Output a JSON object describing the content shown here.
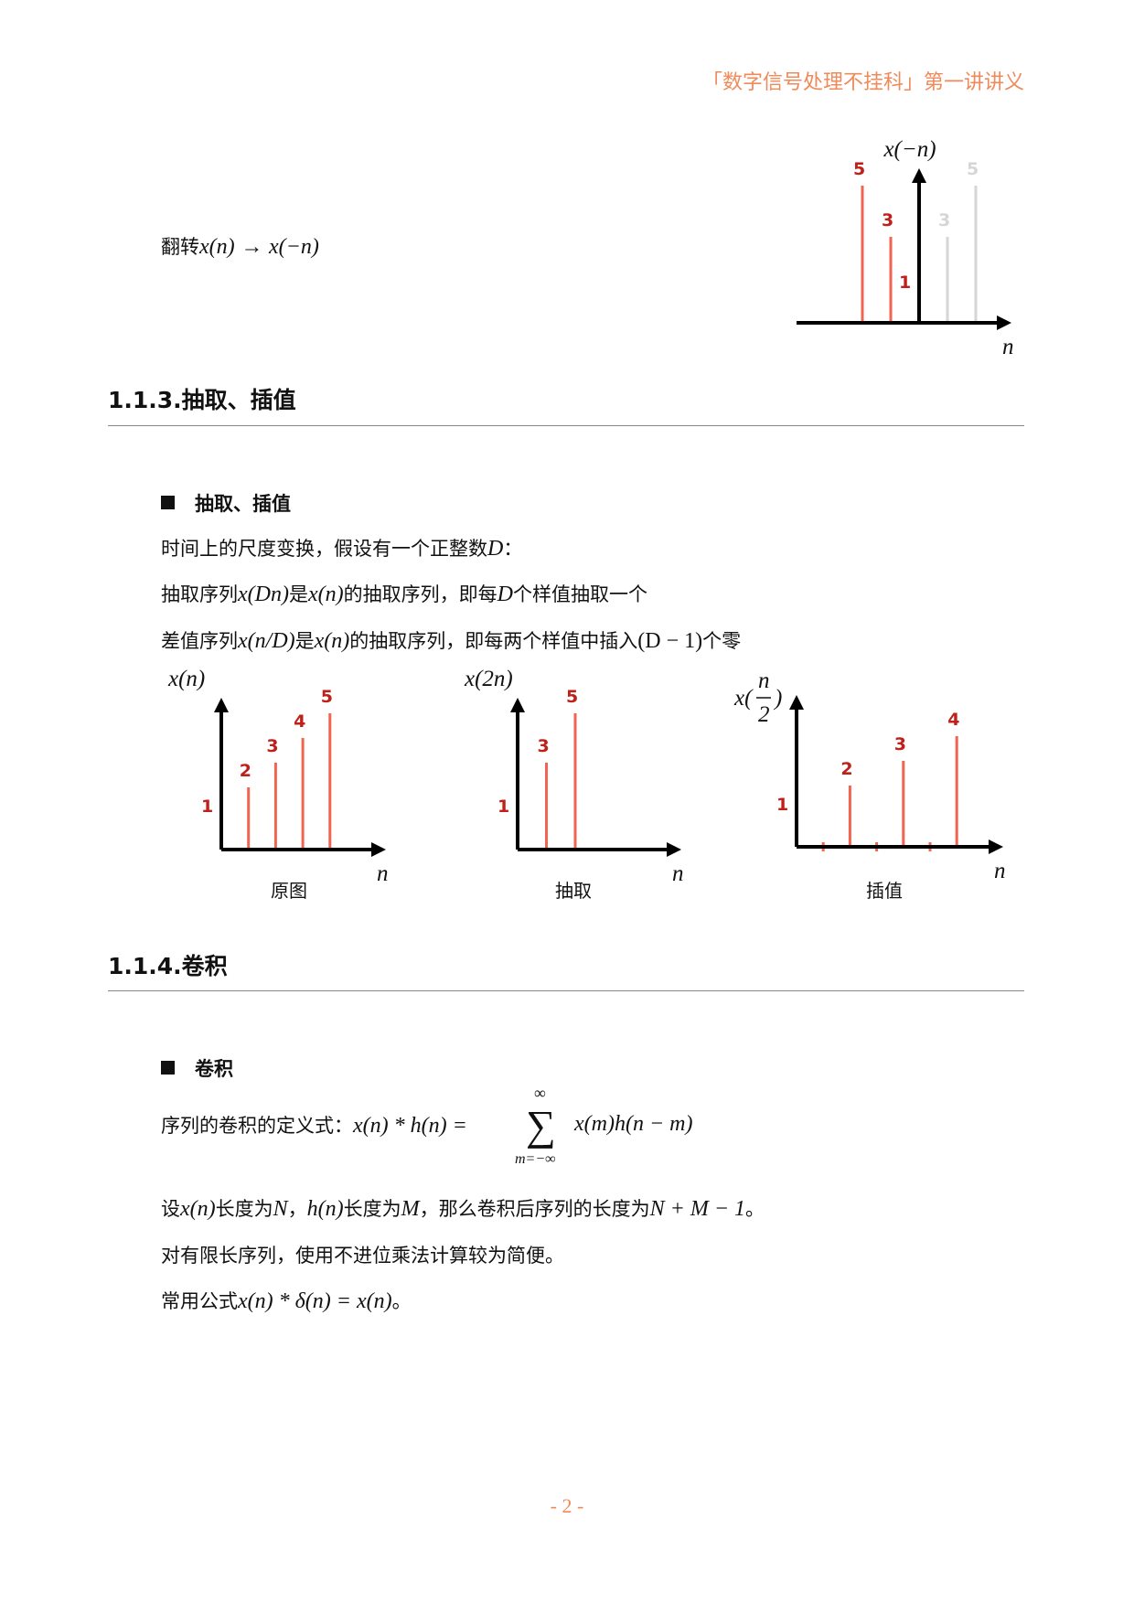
{
  "header": {
    "title": "「数字信号处理不挂科」第一讲讲义"
  },
  "flip": {
    "prefix": "翻转",
    "from": "x(n)",
    "arrow": "→",
    "to": "x(−n)"
  },
  "section_113": {
    "title": "1.1.3.抽取、插值",
    "bullet": "抽取、插值",
    "lines": [
      {
        "a": "时间上的尺度变换，假设有一个正整数",
        "m1": "D",
        "b": "："
      },
      {
        "a": "抽取序列",
        "m1": "x(Dn)",
        "b": "是",
        "m2": "x(n)",
        "c": "的抽取序列，即每",
        "m3": "D",
        "d": "个样值抽取一个"
      },
      {
        "a": "差值序列",
        "m1": "x(n/D)",
        "b": "是",
        "m2": "x(n)",
        "c": "的抽取序列，即每两个样值中插入",
        "m3": "(D − 1)",
        "d": "个零"
      }
    ]
  },
  "section_114": {
    "title": "1.1.4.卷积",
    "bullet": "卷积",
    "formula": {
      "label": "序列的卷积的定义式：",
      "lhs": "x(n) * h(n) =",
      "sum_top": "∞",
      "sum_sign": "∑",
      "sum_bottom": "m=−∞",
      "rhs": "x(m)h(n − m)"
    },
    "line1": {
      "a": "设",
      "m1": "x(n)",
      "b": "长度为",
      "m2": "N",
      "c": "，",
      "m3": "h(n)",
      "d": "长度为",
      "m4": "M",
      "e": "，那么卷积后序列的长度为",
      "m5": "N + M − 1",
      "f": "。"
    },
    "line2": "对有限长序列，使用不进位乘法计算较为简便。",
    "line3": {
      "a": "常用公式",
      "m1": "x(n) * δ(n) = x(n)",
      "b": "。"
    }
  },
  "page_number": "- 2 -",
  "colors": {
    "stem": "#f26350",
    "label": "#c0201a",
    "ghost": "#d6d6d6",
    "accent": "#ef8a5a"
  },
  "chart_data": [
    {
      "type": "stem",
      "ylabel": "x(−n)",
      "xlabel": "n",
      "points": [
        {
          "n": -2,
          "v": 5,
          "label": "5"
        },
        {
          "n": -1,
          "v": 3,
          "label": "3"
        },
        {
          "n": 0,
          "v": 1,
          "label": "1"
        }
      ],
      "ghost_points": [
        {
          "n": 1,
          "v": 3,
          "label": "3"
        },
        {
          "n": 2,
          "v": 5,
          "label": "5"
        }
      ]
    },
    {
      "type": "stem",
      "ylabel": "x(n)",
      "xlabel": "n",
      "caption": "原图",
      "points": [
        {
          "n": 0,
          "v": 1,
          "label": "1"
        },
        {
          "n": 1,
          "v": 2,
          "label": "2"
        },
        {
          "n": 2,
          "v": 3,
          "label": "3"
        },
        {
          "n": 3,
          "v": 4,
          "label": "4"
        },
        {
          "n": 4,
          "v": 5,
          "label": "5"
        }
      ]
    },
    {
      "type": "stem",
      "ylabel": "x(2n)",
      "xlabel": "n",
      "caption": "抽取",
      "points": [
        {
          "n": 0,
          "v": 1,
          "label": "1"
        },
        {
          "n": 1,
          "v": 3,
          "label": "3"
        },
        {
          "n": 2,
          "v": 5,
          "label": "5"
        }
      ]
    },
    {
      "type": "stem",
      "ylabel_prefix": "x(",
      "ylabel_num": "n",
      "ylabel_den": "2",
      "ylabel_suffix": ")",
      "xlabel": "n",
      "caption": "插值",
      "points": [
        {
          "n": 0,
          "v": 1,
          "label": "1"
        },
        {
          "n": 1,
          "v": 0
        },
        {
          "n": 2,
          "v": 2,
          "label": "2"
        },
        {
          "n": 3,
          "v": 0
        },
        {
          "n": 4,
          "v": 3,
          "label": "3"
        },
        {
          "n": 5,
          "v": 0
        },
        {
          "n": 6,
          "v": 4,
          "label": "4"
        }
      ]
    }
  ]
}
